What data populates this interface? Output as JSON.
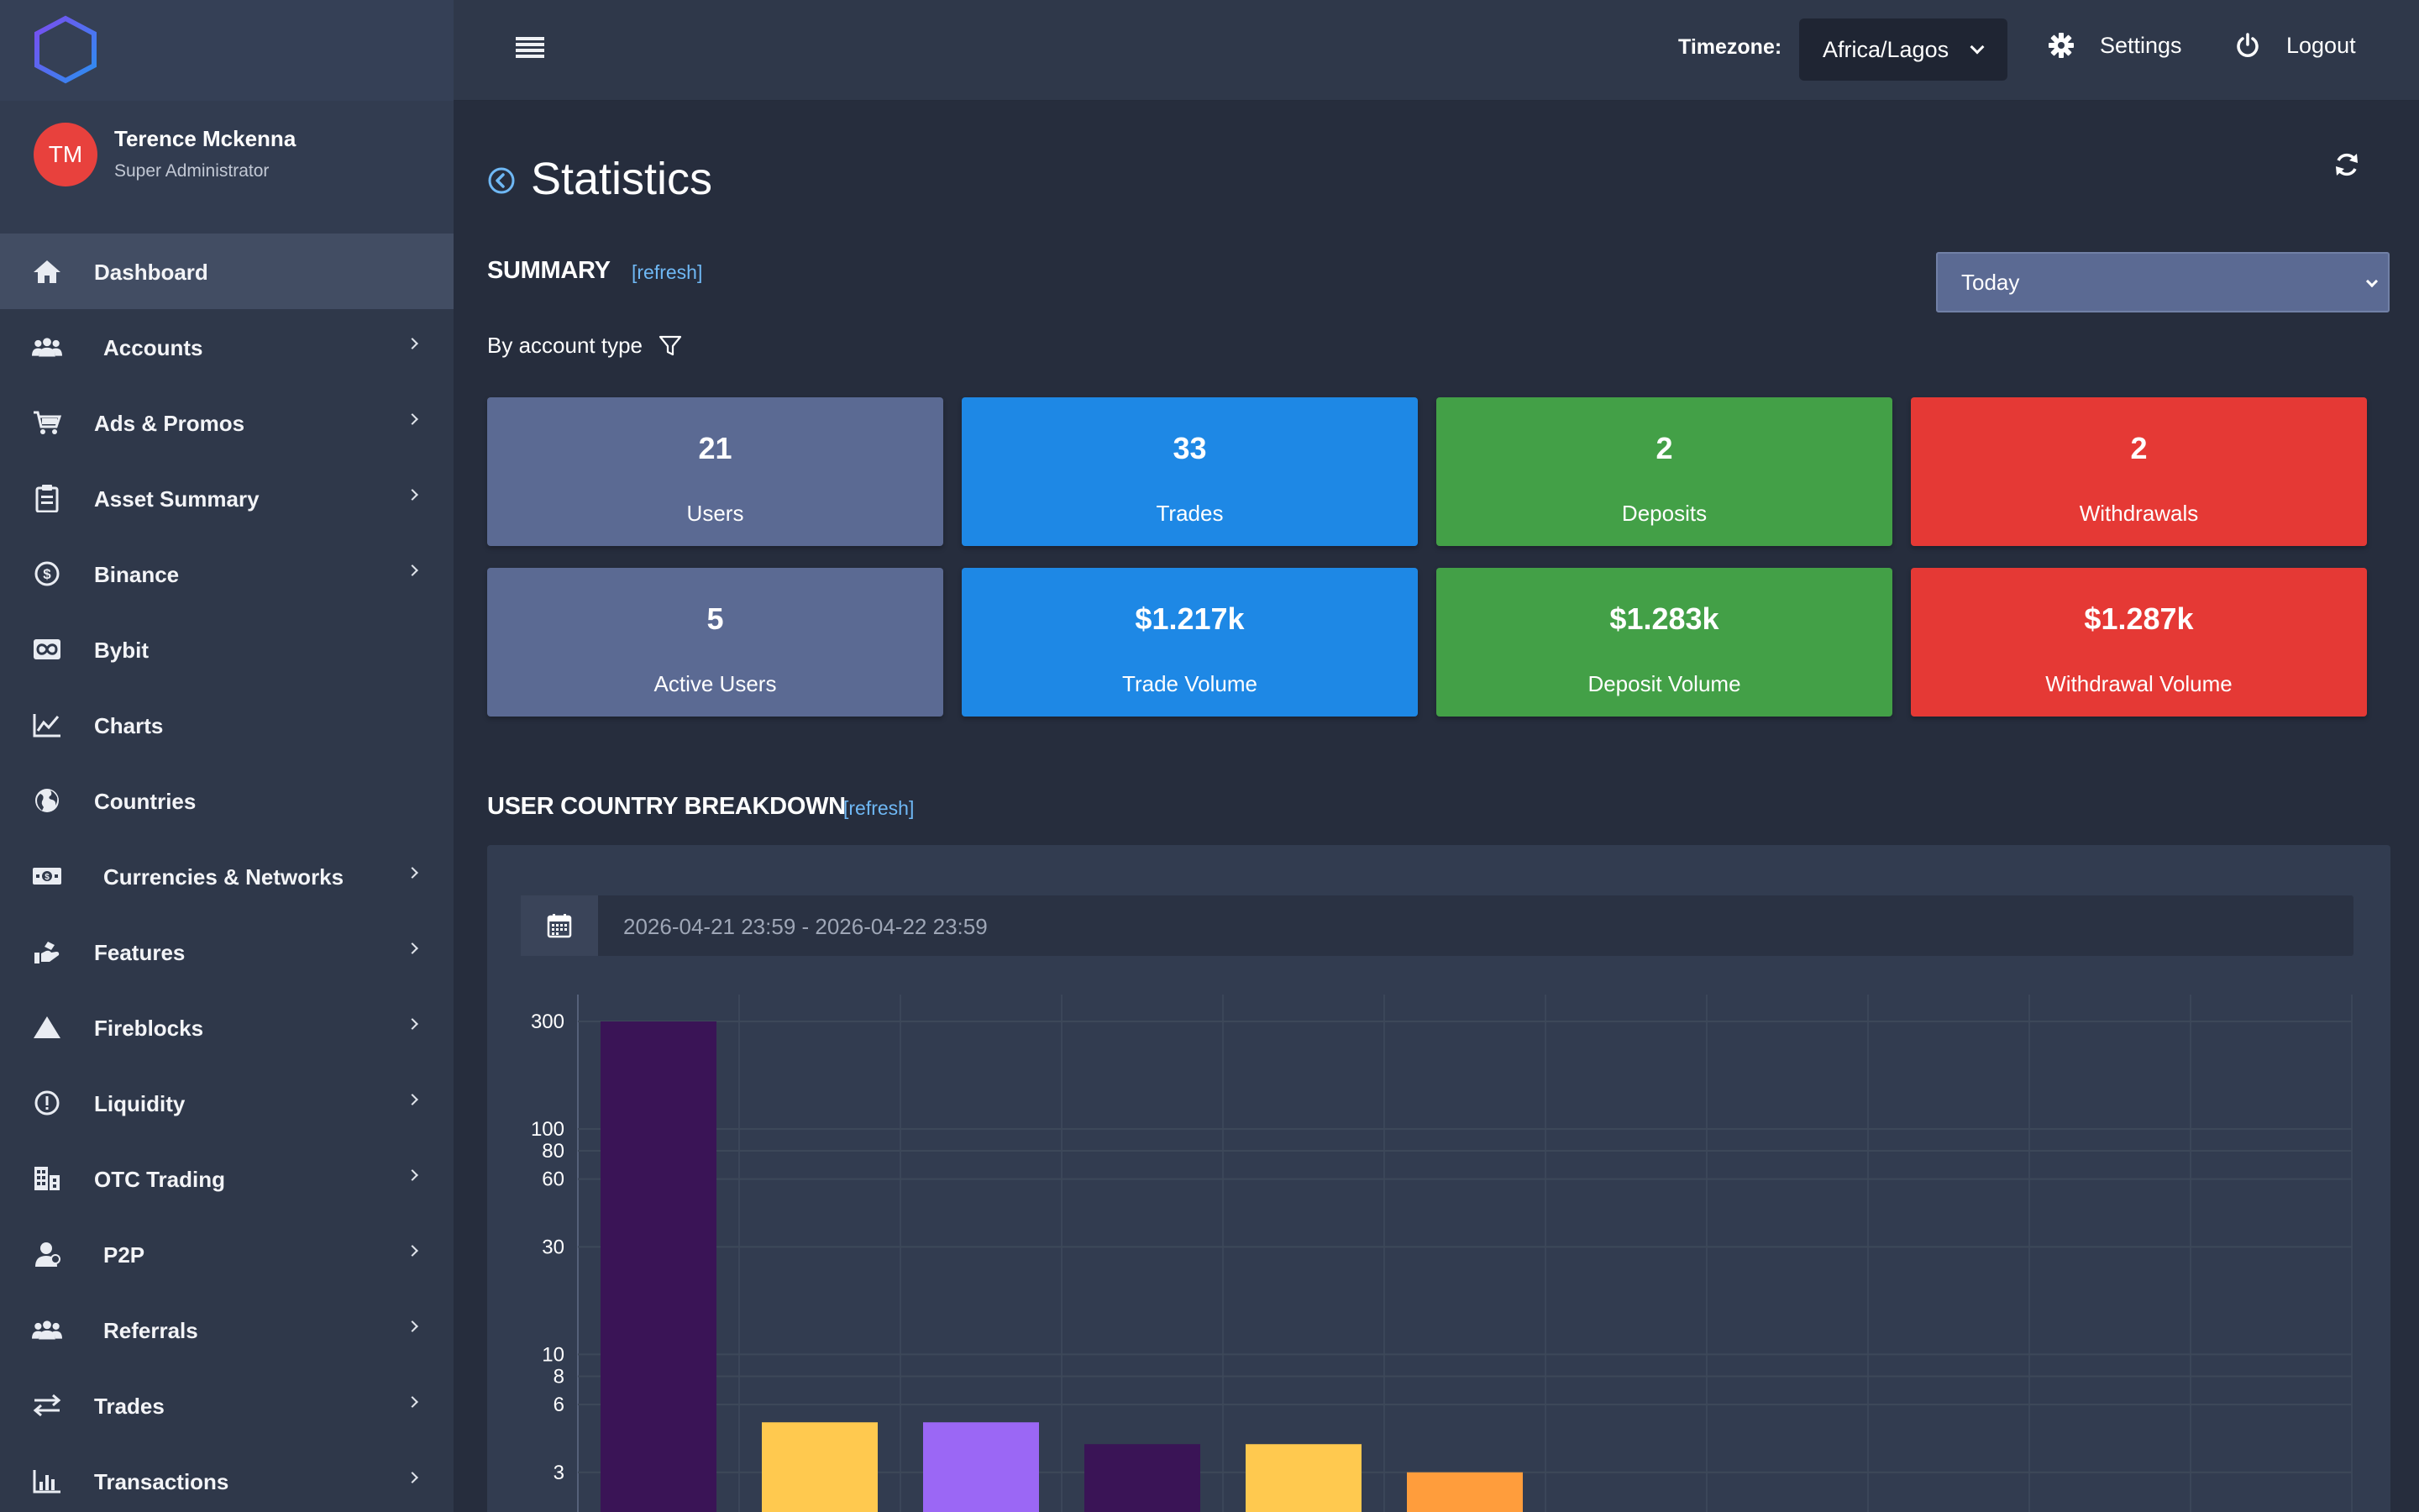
{
  "app": {
    "logo": "hexagon-logo"
  },
  "user": {
    "initials": "TM",
    "name": "Terence Mckenna",
    "role": "Super Administrator"
  },
  "sidebar": {
    "items": [
      {
        "label": "Dashboard",
        "icon": "home-icon",
        "chevron": false,
        "active": true
      },
      {
        "label": "Accounts",
        "icon": "users-icon",
        "chevron": true
      },
      {
        "label": "Ads & Promos",
        "icon": "cart-icon",
        "chevron": true
      },
      {
        "label": "Asset Summary",
        "icon": "clipboard-icon",
        "chevron": true
      },
      {
        "label": "Binance",
        "icon": "coin-icon",
        "chevron": true
      },
      {
        "label": "Bybit",
        "icon": "infinity-icon",
        "chevron": false
      },
      {
        "label": "Charts",
        "icon": "line-chart-icon",
        "chevron": false
      },
      {
        "label": "Countries",
        "icon": "globe-icon",
        "chevron": false
      },
      {
        "label": "Currencies & Networks",
        "icon": "cash-icon",
        "chevron": true
      },
      {
        "label": "Features",
        "icon": "hand-icon",
        "chevron": true
      },
      {
        "label": "Fireblocks",
        "icon": "triangle-icon",
        "chevron": true
      },
      {
        "label": "Liquidity",
        "icon": "alert-circle-icon",
        "chevron": true
      },
      {
        "label": "OTC Trading",
        "icon": "building-icon",
        "chevron": true
      },
      {
        "label": "P2P",
        "icon": "person-icon",
        "chevron": true
      },
      {
        "label": "Referrals",
        "icon": "users-icon",
        "chevron": true
      },
      {
        "label": "Trades",
        "icon": "swap-icon",
        "chevron": true
      },
      {
        "label": "Transactions",
        "icon": "bar-chart-icon",
        "chevron": true
      }
    ]
  },
  "topbar": {
    "timezone_label": "Timezone:",
    "timezone_value": "Africa/Lagos",
    "settings_label": "Settings",
    "logout_label": "Logout"
  },
  "page": {
    "title": "Statistics",
    "summary_title": "SUMMARY",
    "summary_refresh": "[refresh]",
    "range_value": "Today",
    "filter_label": "By account type",
    "country_title": "USER COUNTRY BREAKDOWN",
    "country_refresh": "[refresh]",
    "date_range": "2026-04-21 23:59 - 2026-04-22 23:59"
  },
  "cards": [
    {
      "value": "21",
      "label": "Users",
      "color": "#5b6a93"
    },
    {
      "value": "33",
      "label": "Trades",
      "color": "#1e88e5"
    },
    {
      "value": "2",
      "label": "Deposits",
      "color": "#43a047"
    },
    {
      "value": "2",
      "label": "Withdrawals",
      "color": "#e53935"
    },
    {
      "value": "5",
      "label": "Active Users",
      "color": "#5b6a93"
    },
    {
      "value": "$1.217k",
      "label": "Trade Volume",
      "color": "#1e88e5"
    },
    {
      "value": "$1.283k",
      "label": "Deposit Volume",
      "color": "#43a047"
    },
    {
      "value": "$1.287k",
      "label": "Withdrawal Volume",
      "color": "#e53935"
    }
  ],
  "chart_data": {
    "type": "bar",
    "scale": "log",
    "grid": true,
    "yticks": [
      3,
      6,
      8,
      10,
      30,
      60,
      80,
      100,
      300
    ],
    "ylim": [
      1.9,
      300
    ],
    "values": [
      300,
      5,
      5,
      4,
      4,
      3
    ],
    "colors": [
      "#3a1456",
      "#ffc94f",
      "#9b67f5",
      "#3a1456",
      "#ffc94f",
      "#ff9d3c"
    ]
  }
}
